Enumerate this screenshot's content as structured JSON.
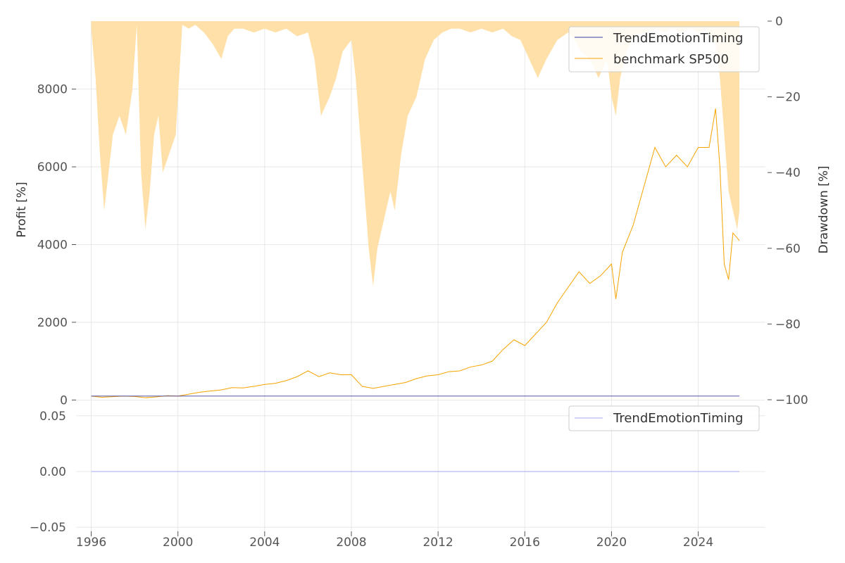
{
  "chart_data": [
    {
      "type": "line",
      "panel": "profit",
      "title": "",
      "xlabel": "",
      "ylabel": "Profit [%]",
      "y2label": "Drawdown [%]",
      "xlim": [
        1995.3,
        2027.1
      ],
      "ylim": [
        -120,
        9750
      ],
      "y2lim": [
        -100,
        0
      ],
      "grid": true,
      "legend_position": "top-right",
      "x_ticks": [
        1996,
        2000,
        2004,
        2008,
        2012,
        2016,
        2020,
        2024
      ],
      "x_tick_labels": [
        "1996",
        "2000",
        "2004",
        "2008",
        "2012",
        "2016",
        "2020",
        "2024"
      ],
      "y_ticks": [
        0,
        2000,
        4000,
        6000,
        8000
      ],
      "y_tick_labels": [
        "0",
        "2000",
        "4000",
        "6000",
        "8000"
      ],
      "y2_ticks": [
        0,
        -20,
        -40,
        -60,
        -80,
        -100
      ],
      "y2_tick_labels": [
        "0",
        "−20",
        "−40",
        "−60",
        "−80",
        "−100"
      ],
      "series": [
        {
          "name": "TrendEmotionTiming",
          "color": "#3b3b9e",
          "x": [
            1996.0,
            2025.9
          ],
          "y": [
            100,
            100
          ]
        },
        {
          "name": "benchmark SP500",
          "color": "#f5a300",
          "x": [
            1996.0,
            1996.5,
            1997.0,
            1997.5,
            1998.0,
            1998.5,
            1999.0,
            1999.5,
            2000.0,
            2000.5,
            2001.0,
            2001.5,
            2002.0,
            2002.5,
            2003.0,
            2003.5,
            2004.0,
            2004.5,
            2005.0,
            2005.5,
            2006.0,
            2006.5,
            2007.0,
            2007.5,
            2008.0,
            2008.5,
            2009.0,
            2009.5,
            2010.0,
            2010.5,
            2011.0,
            2011.5,
            2012.0,
            2012.5,
            2013.0,
            2013.5,
            2014.0,
            2014.5,
            2015.0,
            2015.5,
            2016.0,
            2016.5,
            2017.0,
            2017.5,
            2018.0,
            2018.5,
            2019.0,
            2019.5,
            2020.0,
            2020.2,
            2020.5,
            2021.0,
            2021.5,
            2022.0,
            2022.5,
            2023.0,
            2023.5,
            2024.0,
            2024.5,
            2024.8,
            2025.0,
            2025.2,
            2025.4,
            2025.6,
            2025.9
          ],
          "y": [
            100,
            70,
            85,
            100,
            90,
            60,
            80,
            110,
            100,
            150,
            200,
            230,
            260,
            320,
            310,
            350,
            400,
            430,
            500,
            600,
            750,
            600,
            700,
            650,
            650,
            350,
            300,
            350,
            400,
            450,
            550,
            620,
            650,
            730,
            750,
            850,
            900,
            1000,
            1300,
            1550,
            1400,
            1700,
            2000,
            2500,
            2900,
            3300,
            3000,
            3200,
            3500,
            2600,
            3800,
            4500,
            5500,
            6500,
            6000,
            6300,
            6000,
            6500,
            6500,
            7500,
            6000,
            3500,
            3100,
            4300,
            4100
          ]
        }
      ],
      "drawdown": {
        "name": "benchmark SP500 drawdown",
        "color": "#ffe0a8",
        "x": [
          1996.0,
          1996.2,
          1996.4,
          1996.6,
          1996.8,
          1997.0,
          1997.3,
          1997.6,
          1997.9,
          1998.1,
          1998.3,
          1998.5,
          1998.7,
          1998.9,
          1999.1,
          1999.3,
          1999.6,
          1999.9,
          2000.2,
          2000.5,
          2000.8,
          2001.2,
          2001.6,
          2002.0,
          2002.3,
          2002.6,
          2003.0,
          2003.5,
          2004.0,
          2004.5,
          2005.0,
          2005.5,
          2006.0,
          2006.3,
          2006.6,
          2007.0,
          2007.3,
          2007.6,
          2008.0,
          2008.2,
          2008.4,
          2008.6,
          2008.8,
          2009.0,
          2009.2,
          2009.4,
          2009.6,
          2009.8,
          2010.0,
          2010.3,
          2010.6,
          2011.0,
          2011.4,
          2011.8,
          2012.2,
          2012.6,
          2013.0,
          2013.5,
          2014.0,
          2014.5,
          2015.0,
          2015.4,
          2015.8,
          2016.2,
          2016.6,
          2017.0,
          2017.5,
          2018.0,
          2018.3,
          2018.6,
          2019.0,
          2019.4,
          2019.8,
          2020.0,
          2020.2,
          2020.4,
          2020.7,
          2021.0,
          2021.5,
          2022.0,
          2022.4,
          2022.8,
          2023.2,
          2023.6,
          2024.0,
          2024.4,
          2024.8,
          2025.0,
          2025.2,
          2025.4,
          2025.6,
          2025.8,
          2025.9
        ],
        "y": [
          -2,
          -15,
          -35,
          -50,
          -40,
          -30,
          -25,
          -30,
          -18,
          -1,
          -40,
          -55,
          -45,
          -30,
          -25,
          -40,
          -35,
          -30,
          -1,
          -2,
          -1,
          -3,
          -6,
          -10,
          -4,
          -2,
          -2,
          -3,
          -2,
          -3,
          -2,
          -4,
          -3,
          -10,
          -25,
          -20,
          -15,
          -8,
          -5,
          -15,
          -30,
          -45,
          -60,
          -70,
          -60,
          -55,
          -50,
          -45,
          -50,
          -35,
          -25,
          -20,
          -10,
          -5,
          -3,
          -2,
          -2,
          -3,
          -2,
          -3,
          -2,
          -4,
          -5,
          -10,
          -15,
          -10,
          -5,
          -3,
          -5,
          -8,
          -10,
          -15,
          -10,
          -20,
          -25,
          -15,
          -8,
          -4,
          -3,
          -2,
          -3,
          -2,
          -3,
          -2,
          -3,
          -2,
          -6,
          -15,
          -30,
          -45,
          -50,
          -55,
          -50
        ]
      }
    },
    {
      "type": "line",
      "panel": "exposure",
      "title": "",
      "xlabel": "",
      "ylabel": "",
      "xlim": [
        1995.3,
        2027.1
      ],
      "ylim": [
        -0.06,
        0.06
      ],
      "grid": true,
      "legend_position": "top-right",
      "y_ticks": [
        0.05,
        0.0,
        -0.05
      ],
      "y_tick_labels": [
        "0.05",
        "0.00",
        "−0.05"
      ],
      "series": [
        {
          "name": "TrendEmotionTiming",
          "color": "#b8b8f0",
          "x": [
            1996.0,
            2025.9
          ],
          "y": [
            0.0,
            0.0
          ]
        }
      ]
    }
  ]
}
